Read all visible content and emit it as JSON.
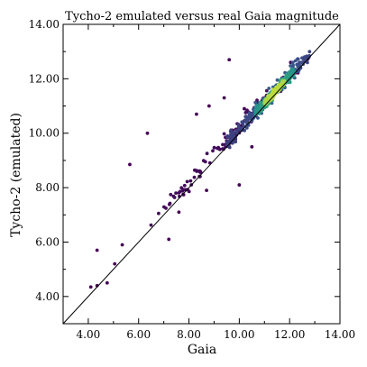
{
  "chart_data": {
    "type": "scatter",
    "title": "Tycho-2 emulated versus real Gaia magnitude",
    "xlabel": "Gaia",
    "ylabel": "Tycho-2 (emulated)",
    "xlim": [
      3.0,
      14.0
    ],
    "ylim": [
      3.0,
      14.0
    ],
    "xticks": [
      4.0,
      6.0,
      8.0,
      10.0,
      12.0,
      14.0
    ],
    "yticks": [
      4.0,
      6.0,
      8.0,
      10.0,
      12.0,
      14.0
    ],
    "xtick_labels": [
      "4.00",
      "6.00",
      "8.00",
      "10.00",
      "12.00",
      "14.00"
    ],
    "ytick_labels": [
      "4.00",
      "6.00",
      "8.00",
      "10.00",
      "12.00",
      "14.00"
    ],
    "reference_line": {
      "x": [
        3.0,
        14.0
      ],
      "y": [
        3.0,
        14.0
      ],
      "color": "#000000"
    },
    "grid": false,
    "legend": "none",
    "colormap": "viridis",
    "colors": {
      "low": "#440154",
      "mid": "#21918c",
      "high": "#fde725"
    },
    "series": [
      {
        "density_bands": [
          {
            "x": [
              4.6,
              13.1
            ],
            "y_offset": 0.18,
            "spread": 0.28,
            "density": 0.05
          },
          {
            "x": [
              9.5,
              12.8
            ],
            "y_offset": 0.15,
            "spread": 0.22,
            "density": 0.3
          },
          {
            "x": [
              10.6,
              12.2
            ],
            "y_offset": 0.12,
            "spread": 0.15,
            "density": 0.6
          },
          {
            "x": [
              11.0,
              11.8
            ],
            "y_offset": 0.1,
            "spread": 0.1,
            "density": 0.9
          }
        ],
        "outliers": [
          {
            "x": 4.1,
            "y": 4.35
          },
          {
            "x": 4.35,
            "y": 4.4
          },
          {
            "x": 4.35,
            "y": 5.7
          },
          {
            "x": 4.75,
            "y": 4.5
          },
          {
            "x": 5.05,
            "y": 5.2
          },
          {
            "x": 5.35,
            "y": 5.9
          },
          {
            "x": 5.65,
            "y": 8.85
          },
          {
            "x": 6.35,
            "y": 10.0
          },
          {
            "x": 7.2,
            "y": 6.1
          },
          {
            "x": 7.6,
            "y": 7.1
          },
          {
            "x": 8.3,
            "y": 10.7
          },
          {
            "x": 8.8,
            "y": 11.0
          },
          {
            "x": 9.6,
            "y": 12.7
          },
          {
            "x": 9.4,
            "y": 11.3
          },
          {
            "x": 10.0,
            "y": 8.1
          },
          {
            "x": 10.5,
            "y": 9.5
          },
          {
            "x": 10.2,
            "y": 10.9
          },
          {
            "x": 8.7,
            "y": 7.9
          }
        ]
      }
    ]
  }
}
